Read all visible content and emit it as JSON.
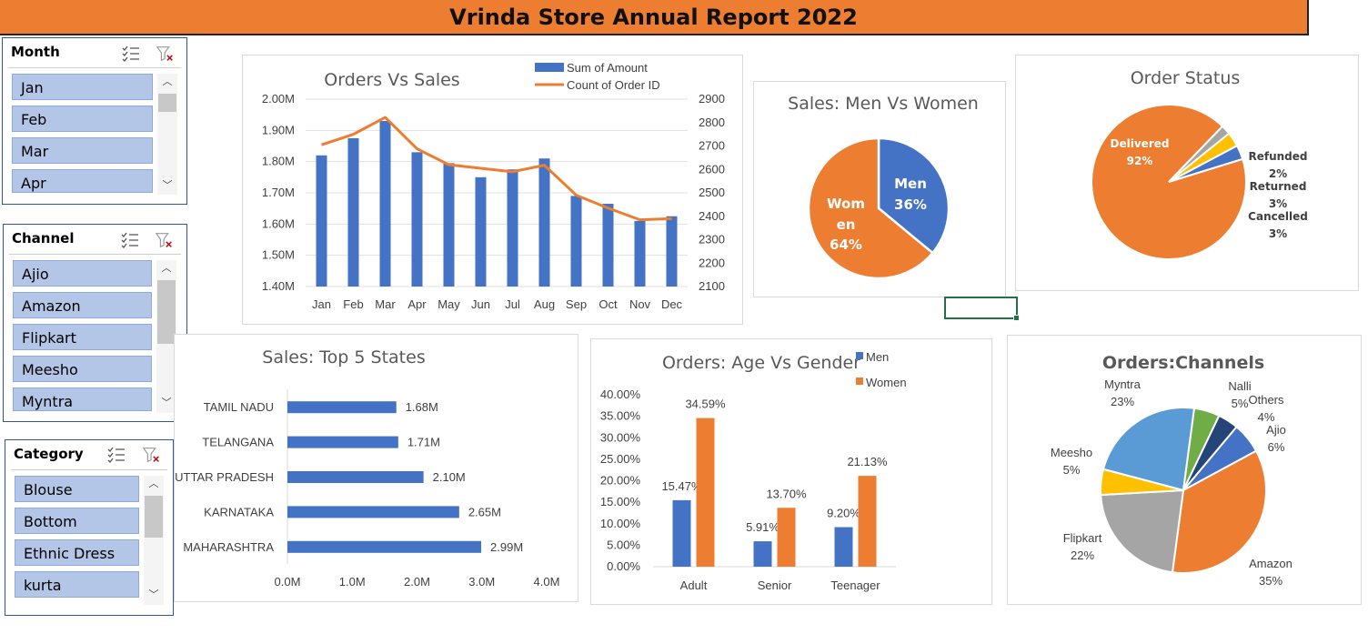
{
  "report_title": "Vrinda Store Annual Report 2022",
  "colors": {
    "blue": "#4472C4",
    "orange": "#ED7D31",
    "gray": "#A5A5A5",
    "yellow": "#FFC000",
    "lightblue": "#5B9BD5",
    "green": "#70AD47",
    "navy": "#264478"
  },
  "slicers": {
    "month": {
      "header": "Month",
      "items": [
        "Jan",
        "Feb",
        "Mar",
        "Apr"
      ]
    },
    "channel": {
      "header": "Channel",
      "items": [
        "Ajio",
        "Amazon",
        "Flipkart",
        "Meesho",
        "Myntra"
      ]
    },
    "category": {
      "header": "Category",
      "items": [
        "Blouse",
        "Bottom",
        "Ethnic Dress",
        "kurta"
      ]
    }
  },
  "chart_data": [
    {
      "type": "bar+line",
      "title": "Orders Vs Sales",
      "categories": [
        "Jan",
        "Feb",
        "Mar",
        "Apr",
        "May",
        "Jun",
        "Jul",
        "Aug",
        "Sep",
        "Oct",
        "Nov",
        "Dec"
      ],
      "series": [
        {
          "name": "Sum of Amount",
          "type": "bar",
          "axis": "left",
          "values": [
            1.82,
            1.875,
            1.93,
            1.83,
            1.795,
            1.75,
            1.775,
            1.81,
            1.69,
            1.665,
            1.61,
            1.625
          ]
        },
        {
          "name": "Count of Order ID",
          "type": "line",
          "axis": "right",
          "values": [
            2705,
            2750,
            2822,
            2688,
            2620,
            2605,
            2590,
            2618,
            2490,
            2435,
            2385,
            2390
          ]
        }
      ],
      "y_left_ticks": [
        "2.00M",
        "1.90M",
        "1.80M",
        "1.70M",
        "1.60M",
        "1.50M",
        "1.40M"
      ],
      "y_right_ticks": [
        "2900",
        "2800",
        "2700",
        "2600",
        "2500",
        "2400",
        "2300",
        "2200",
        "2100"
      ],
      "ylim_left": [
        1.4,
        2.0
      ],
      "ylim_right": [
        2100,
        2900
      ],
      "legend": "top-right",
      "grid": true
    },
    {
      "type": "pie",
      "title": "Sales: Men Vs Women",
      "slices": [
        {
          "label_top": "Men",
          "label_bottom": "",
          "pct_label": "36%",
          "value": 36,
          "color": "#4472C4"
        },
        {
          "label_top": "Wom",
          "label_bottom": "en",
          "pct_label": "64%",
          "value": 64,
          "color": "#ED7D31"
        }
      ]
    },
    {
      "type": "pie",
      "title": "Order Status",
      "slices": [
        {
          "label": "Delivered",
          "pct_label": "92%",
          "value": 92,
          "color": "#ED7D31"
        },
        {
          "label": "Refunded",
          "pct_label": "2%",
          "value": 2,
          "color": "#A5A5A5"
        },
        {
          "label": "Returned",
          "pct_label": "3%",
          "value": 3,
          "color": "#FFC000"
        },
        {
          "label": "Cancelled",
          "pct_label": "3%",
          "value": 3,
          "color": "#4472C4"
        }
      ]
    },
    {
      "type": "bar",
      "orientation": "horizontal",
      "title": "Sales: Top 5 States",
      "categories": [
        "TAMIL NADU",
        "TELANGANA",
        "UTTAR PRADESH",
        "KARNATAKA",
        "MAHARASHTRA"
      ],
      "values": [
        1.68,
        1.71,
        2.1,
        2.65,
        2.99
      ],
      "value_labels": [
        "1.68M",
        "1.71M",
        "2.10M",
        "2.65M",
        "2.99M"
      ],
      "x_ticks": [
        "0.0M",
        "1.0M",
        "2.0M",
        "3.0M",
        "4.0M"
      ],
      "xlim": [
        0,
        4
      ]
    },
    {
      "type": "bar",
      "title": "Orders: Age Vs Gender",
      "categories": [
        "Adult",
        "Senior",
        "Teenager"
      ],
      "series": [
        {
          "name": "Men",
          "values": [
            15.47,
            5.91,
            9.2
          ],
          "labels": [
            "15.47%",
            "5.91%",
            "9.20%"
          ]
        },
        {
          "name": "Women",
          "values": [
            34.59,
            13.7,
            21.13
          ],
          "labels": [
            "34.59%",
            "13.70%",
            "21.13%"
          ]
        }
      ],
      "y_ticks": [
        "40.00%",
        "35.00%",
        "30.00%",
        "25.00%",
        "20.00%",
        "15.00%",
        "10.00%",
        "5.00%",
        "0.00%"
      ],
      "ylim": [
        0,
        40
      ],
      "legend": "top-right"
    },
    {
      "type": "pie",
      "title": "Orders:Channels",
      "slices": [
        {
          "label": "Ajio",
          "pct_label": "6%",
          "value": 6,
          "color": "#4472C4"
        },
        {
          "label": "Amazon",
          "pct_label": "35%",
          "value": 35,
          "color": "#ED7D31"
        },
        {
          "label": "Flipkart",
          "pct_label": "22%",
          "value": 22,
          "color": "#A5A5A5"
        },
        {
          "label": "Meesho",
          "pct_label": "5%",
          "value": 5,
          "color": "#FFC000"
        },
        {
          "label": "Myntra",
          "pct_label": "23%",
          "value": 23,
          "color": "#5B9BD5"
        },
        {
          "label": "Nalli",
          "pct_label": "5%",
          "value": 5,
          "color": "#70AD47"
        },
        {
          "label": "Others",
          "pct_label": "4%",
          "value": 4,
          "color": "#264478"
        }
      ]
    }
  ]
}
